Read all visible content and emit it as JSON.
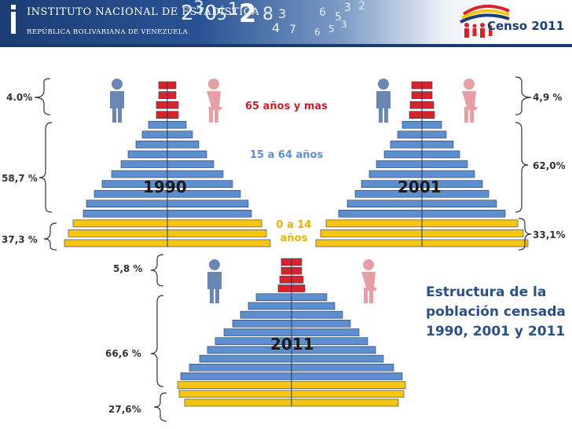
{
  "header": {
    "institute_line1": "INSTITUTO NACIONAL DE ESTADÍSTICA",
    "institute_line2": "REPÚBLICA BOLIVARIANA DE VENEZUELA",
    "census_label": "Censo 2011",
    "decorative_digits": "2 3 0 5 1 2 8 3 6 5 3 2 4 7 6 5 3",
    "colors": {
      "navy": "#1c3d73",
      "light_blue": "#7d9cc6"
    }
  },
  "age_groups": {
    "old": "65 años y mas",
    "working": "15 a 64 años",
    "young": "0 a 14 años"
  },
  "pyramids": [
    {
      "year": "1990",
      "pct_old": "4.0%",
      "pct_working": "58,7 %",
      "pct_young": "37,3 %"
    },
    {
      "year": "2001",
      "pct_old": "4,9 %",
      "pct_working": "62,0%",
      "pct_young": "33,1%"
    },
    {
      "year": "2011",
      "pct_old": "5,8 %",
      "pct_working": "66,6 %",
      "pct_young": "27,6%"
    }
  ],
  "structure": {
    "bar_colors": {
      "old": "#d9232b",
      "working": "#5d8ed0",
      "young": "#f4c512"
    },
    "figure_colors": {
      "male": "#6a87b4",
      "female": "#e59fa5"
    }
  },
  "title": "Estructura de la población censada 1990, 2001 y 2011"
}
